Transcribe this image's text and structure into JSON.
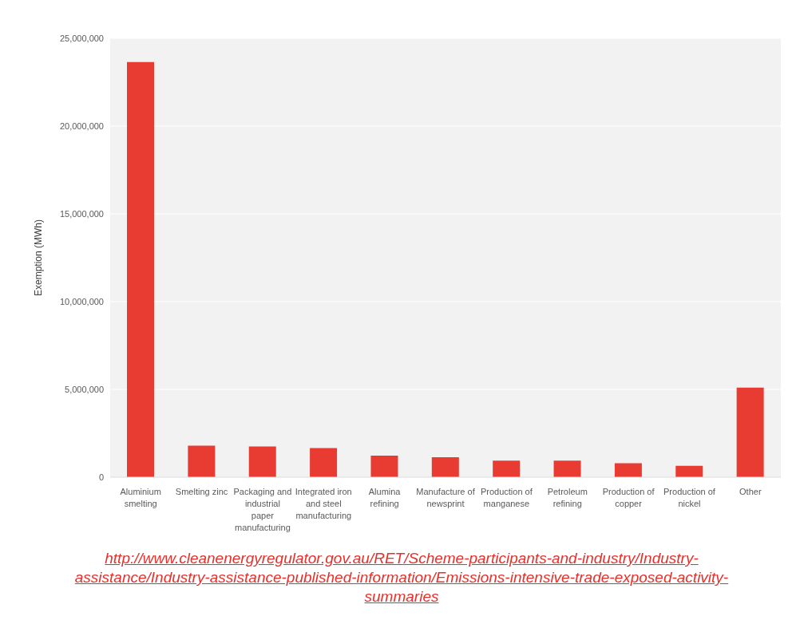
{
  "chart_data": {
    "type": "bar",
    "ylabel": "Exemption (MWh)",
    "categories": [
      "Aluminium smelting",
      "Smelting zinc",
      "Packaging and industrial paper manufacturing",
      "Integrated iron and steel manufacturing",
      "Alumina refining",
      "Manufacture of newsprint",
      "Production of manganese",
      "Petroleum refining",
      "Production of copper",
      "Production of nickel",
      "Other"
    ],
    "values": [
      23650000,
      1800000,
      1750000,
      1660000,
      1230000,
      1140000,
      940000,
      940000,
      800000,
      650000,
      5100000
    ],
    "color": "#e83c33",
    "ylim": [
      0,
      25000000
    ],
    "yticks": [
      0,
      {
        "value": 5000000,
        "label": "5,000,000"
      },
      {
        "value": 10000000,
        "label": "10,000,000"
      },
      {
        "value": 15000000,
        "label": "15,000,000"
      },
      {
        "value": 20000000,
        "label": "20,000,000"
      },
      {
        "value": 25000000,
        "label": "25,000,000"
      }
    ],
    "grid": "y",
    "annotations": [
      "http://www.cleanenergyregulator.gov.au/RET/Scheme-participants-and-industry/Industry-assistance/Industry-assistance-published-information/Emissions-intensive-trade-exposed-activity-summaries"
    ]
  }
}
